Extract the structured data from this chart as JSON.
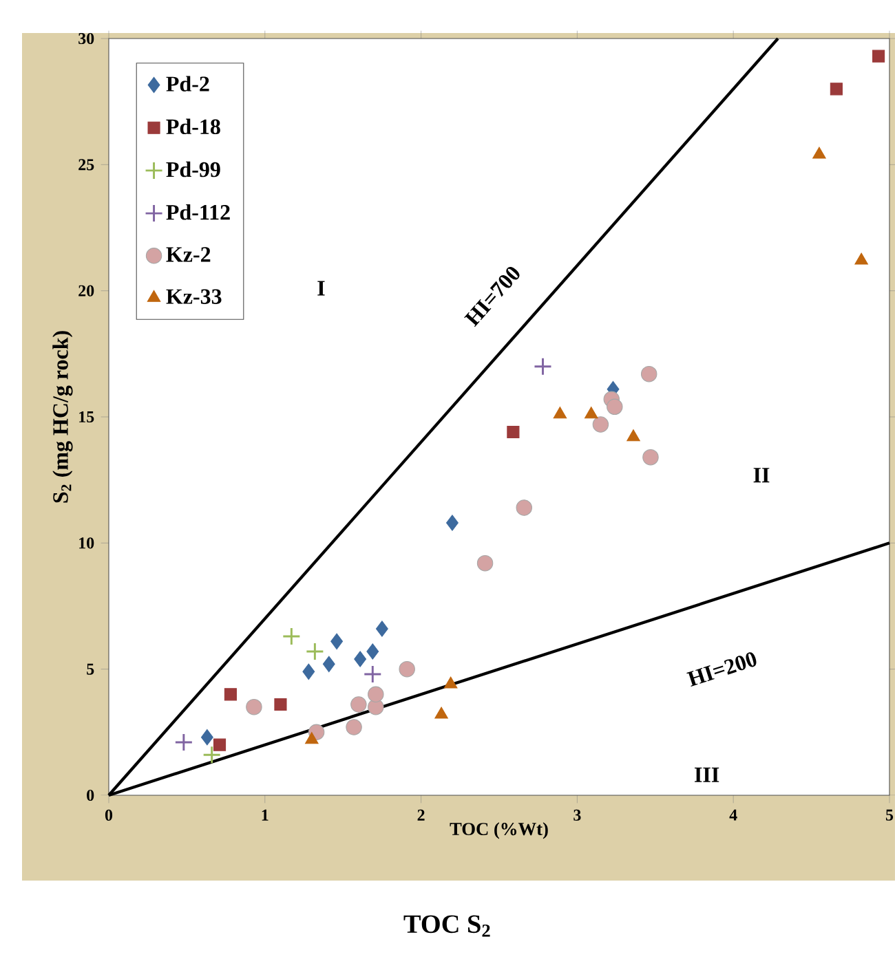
{
  "chart_data": {
    "type": "scatter",
    "xlabel": "TOC (%Wt)",
    "ylabel": "S$_{2}$ (mg HC/g rock)",
    "xlim": [
      0,
      5
    ],
    "ylim": [
      0,
      30
    ],
    "xticks": [
      0,
      1,
      2,
      3,
      4,
      5
    ],
    "yticks": [
      0,
      5,
      10,
      15,
      20,
      25,
      30
    ],
    "grid": false,
    "legend": "top left",
    "series": [
      {
        "name": "Pd-2",
        "color": "#3d6a9e",
        "marker": "diamond",
        "x": [
          0.63,
          1.28,
          1.41,
          1.46,
          1.61,
          1.69,
          1.75,
          2.2,
          3.23
        ],
        "values": [
          2.3,
          4.9,
          5.2,
          6.1,
          5.4,
          5.7,
          6.6,
          10.8,
          16.1
        ]
      },
      {
        "name": "Pd-18",
        "color": "#9b3a3a",
        "marker": "square",
        "x": [
          0.71,
          0.78,
          1.1,
          2.59,
          4.66,
          4.93
        ],
        "values": [
          2.0,
          4.0,
          3.6,
          14.4,
          28.0,
          29.3
        ]
      },
      {
        "name": "Pd-99",
        "color": "#9bbb59",
        "marker": "cross",
        "x": [
          0.66,
          1.17,
          1.32
        ],
        "values": [
          1.6,
          6.3,
          5.7
        ]
      },
      {
        "name": "Pd-112",
        "color": "#8064a2",
        "marker": "cross",
        "x": [
          0.48,
          1.69,
          2.78
        ],
        "values": [
          2.1,
          4.8,
          17.0
        ]
      },
      {
        "name": "Kz-2",
        "color": "#d4a3a3",
        "marker": "circle",
        "x": [
          0.93,
          1.33,
          1.57,
          1.6,
          1.71,
          1.71,
          1.91,
          2.41,
          2.66,
          3.15,
          3.22,
          3.24,
          3.46,
          3.47
        ],
        "values": [
          3.5,
          2.5,
          2.7,
          3.6,
          3.5,
          4.0,
          5.0,
          9.2,
          11.4,
          14.7,
          15.7,
          15.4,
          16.7,
          13.4
        ]
      },
      {
        "name": "Kz-33",
        "color": "#c0660e",
        "marker": "triangle",
        "x": [
          1.3,
          2.13,
          2.19,
          2.89,
          3.09,
          3.36,
          4.55,
          4.82
        ],
        "values": [
          2.2,
          3.2,
          4.4,
          15.1,
          15.1,
          14.2,
          25.4,
          21.2
        ]
      },
      {
        "type": "line",
        "color": "#000000",
        "marker": "none",
        "x": [
          0,
          4.2857
        ],
        "values": [
          0,
          30
        ]
      },
      {
        "type": "line",
        "color": "#000000",
        "marker": "none",
        "x": [
          0,
          5
        ],
        "values": [
          0,
          10
        ]
      }
    ],
    "annotations": [
      "HI=700",
      "HI=200",
      "I",
      "II",
      "III",
      "TOC S$_{2}$"
    ]
  }
}
